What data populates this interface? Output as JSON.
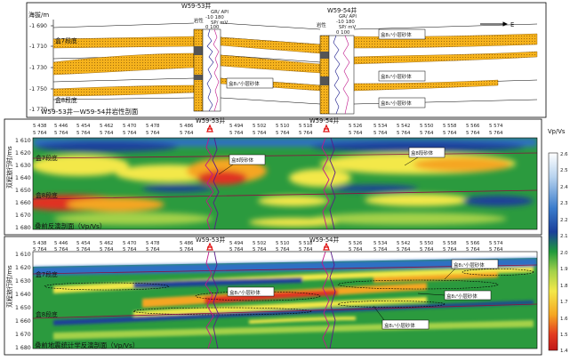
{
  "panel_a": {
    "y_title": "海拔/m",
    "y_ticks": [
      "-1 690",
      "-1 710",
      "-1 730",
      "-1 750",
      "-1 770"
    ],
    "direction": "E",
    "left_well": {
      "name": "W59-53井",
      "lith": "岩性",
      "gr": "GR/ API",
      "gr_range": "-10   180",
      "sp": "SP/ mV",
      "sp_range": "0   100"
    },
    "right_well": {
      "name": "W59-54井",
      "lith": "岩性",
      "gr": "GR/ API",
      "gr_range": "-10   180",
      "sp": "SP/ mV",
      "sp_range": "0   100"
    },
    "top_label": "盒7段底",
    "bottom_label": "盒8段底",
    "caption": "W59-53井—W59-54井岩性剖面",
    "callouts": [
      "盒8₁¹小层砂体",
      "盒8₁²小层砂体",
      "盒8₁²小层砂体",
      "盒8₁¹小层砂体"
    ]
  },
  "panel_b": {
    "y_title": "双程旅行时/ms",
    "y_ticks": [
      "1 610",
      "1 620",
      "1 630",
      "1 640",
      "1 650",
      "1 660",
      "1 670",
      "1 680"
    ],
    "cdp_top": [
      "5 438",
      "5 446",
      "5 454",
      "5 462",
      "5 470",
      "5 478",
      "5 486",
      "5 494",
      "5 502",
      "5 510",
      "5 518",
      "5 526",
      "5 534",
      "5 542",
      "5 550",
      "5 558",
      "5 566",
      "5 574"
    ],
    "cdp_bottom": "5 764",
    "wells": [
      "W59-53井",
      "W59-54井"
    ],
    "labels": {
      "top": "盒7段底",
      "bottom": "盒8段底"
    },
    "callouts": [
      "盒8段砂体",
      "盒8段砂体"
    ],
    "caption": "叠前反演剖面（Vp/Vs）"
  },
  "panel_c": {
    "y_title": "双程旅行时/ms",
    "y_ticks": [
      "1 610",
      "1 620",
      "1 630",
      "1 640",
      "1 650",
      "1 660",
      "1 670",
      "1 680"
    ],
    "cdp_top": [
      "5 438",
      "5 446",
      "5 454",
      "5 462",
      "5 470",
      "5 478",
      "5 486",
      "5 494",
      "5 502",
      "5 510",
      "5 518",
      "5 526",
      "5 534",
      "5 542",
      "5 550",
      "5 558",
      "5 566",
      "5 574"
    ],
    "cdp_bottom": "5 764",
    "wells": [
      "W59-53井",
      "W59-54井"
    ],
    "labels": {
      "top": "盒7段底",
      "bottom": "盒8段底"
    },
    "callouts": [
      "盒8₁¹小层砂体",
      "盒8₁²小层砂体",
      "盒8₁²小层砂体",
      "盒8₁¹小层砂体"
    ],
    "caption": "叠前地震统计学反演剖面（Vp/Vs）"
  },
  "colorbar": {
    "title": "Vp/Vs",
    "ticks": [
      "2.6",
      "2.5",
      "2.4",
      "2.3",
      "2.2",
      "2.1",
      "2.0",
      "1.9",
      "1.8",
      "1.7",
      "1.6",
      "1.5",
      "1.4"
    ],
    "colors": [
      "#ffffff",
      "#a8c8ea",
      "#2f6fc4",
      "#1a3f9a",
      "#1e9a3a",
      "#9ed04a",
      "#f2e84a",
      "#f5a623",
      "#e03020",
      "#c01818"
    ]
  }
}
